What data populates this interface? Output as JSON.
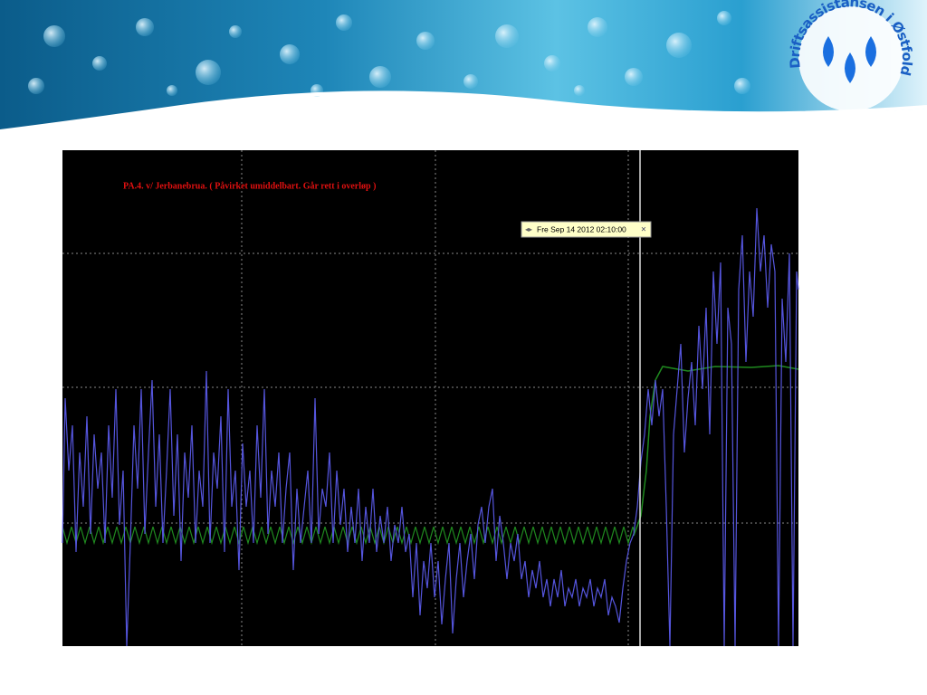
{
  "logo": {
    "text": "Driftsassistansen i Østfold"
  },
  "chart": {
    "title": "PA.4. v/ Jerbanebrua. ( Påvirket umiddelbart. Går rett i overløp )",
    "tooltip": "Fre Sep 14 2012 02:10:00"
  }
}
